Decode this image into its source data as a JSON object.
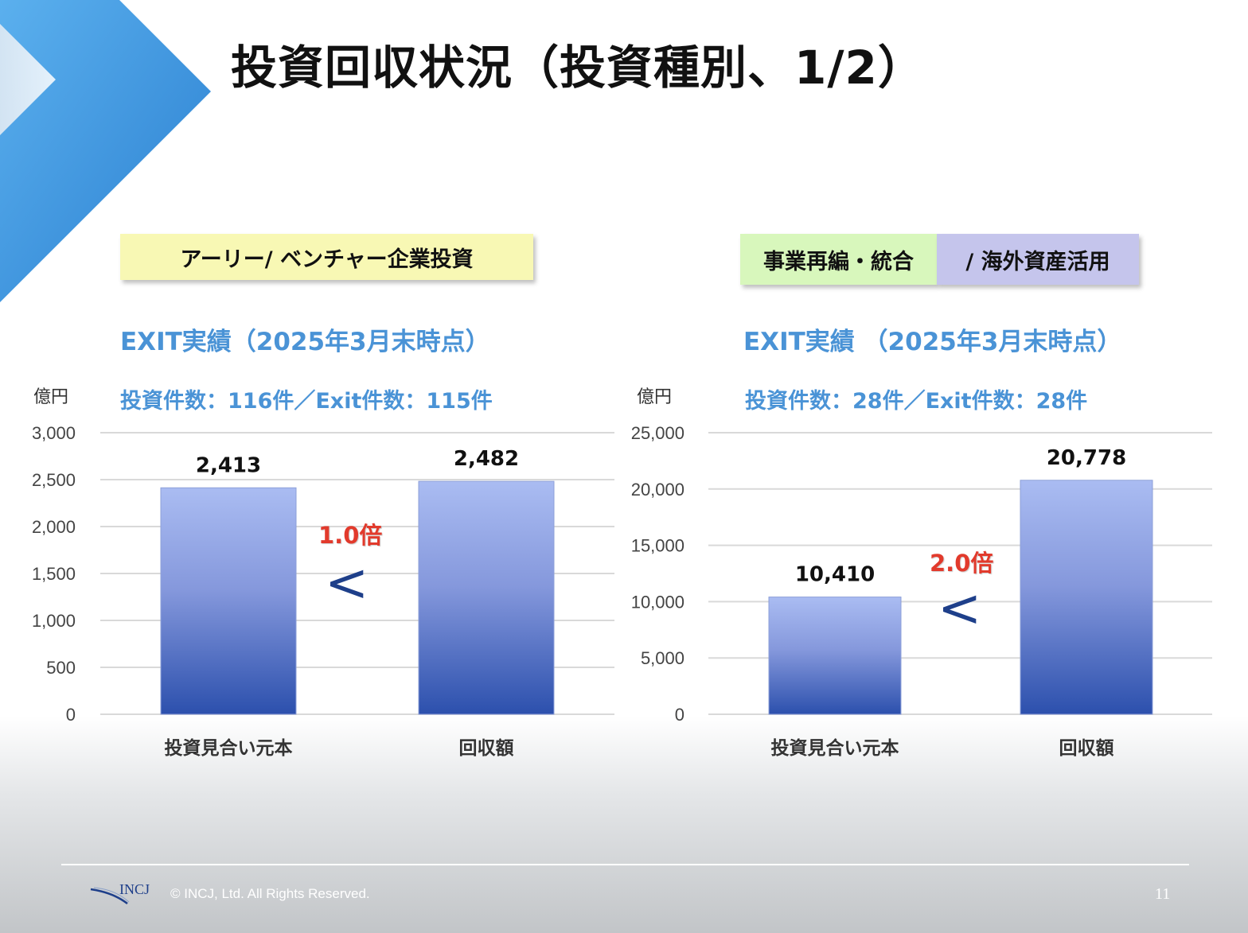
{
  "title": "投資回収状況（投資種別、1/2）",
  "left_panel": {
    "tag": "アーリー/ ベンチャー企業投資",
    "exit_heading": "EXIT実績（2025年3月末時点）",
    "counts": "投資件数：116件／Exit件数：115件",
    "unit": "億円",
    "multiplier": "1.0倍",
    "comparison_symbol": "<"
  },
  "right_panel": {
    "tag_part1": "事業再編・統合",
    "tag_part2": "/ 海外資産活用",
    "exit_heading": "EXIT実績 （2025年3月末時点）",
    "counts": "投資件数：28件／Exit件数：28件",
    "unit": "億円",
    "multiplier": "2.0倍",
    "comparison_symbol": "<"
  },
  "chart_data": [
    {
      "type": "bar",
      "categories": [
        "投資見合い元本",
        "回収額"
      ],
      "values": [
        2413,
        2482
      ],
      "value_labels": [
        "2,413",
        "2,482"
      ],
      "ylim": [
        0,
        3000
      ],
      "yticks": [
        0,
        500,
        1000,
        1500,
        2000,
        2500,
        3000
      ],
      "ytick_labels": [
        "0",
        "500",
        "1,000",
        "1,500",
        "2,000",
        "2,500",
        "3,000"
      ],
      "ylabel": "億円",
      "grid": true
    },
    {
      "type": "bar",
      "categories": [
        "投資見合い元本",
        "回収額"
      ],
      "values": [
        10410,
        20778
      ],
      "value_labels": [
        "10,410",
        "20,778"
      ],
      "ylim": [
        0,
        25000
      ],
      "yticks": [
        0,
        5000,
        10000,
        15000,
        20000,
        25000
      ],
      "ytick_labels": [
        "0",
        "5,000",
        "10,000",
        "15,000",
        "20,000",
        "25,000"
      ],
      "ylabel": "億円",
      "grid": true
    }
  ],
  "footer": {
    "logo_text": "INCJ",
    "copyright": "© INCJ, Ltd. All Rights Reserved.",
    "page_number": "11"
  },
  "colors": {
    "accent_blue": "#4a93d6",
    "multiplier_red": "#e23a2c",
    "bar_top": "#aabcf2",
    "bar_bottom": "#2c50ad"
  }
}
